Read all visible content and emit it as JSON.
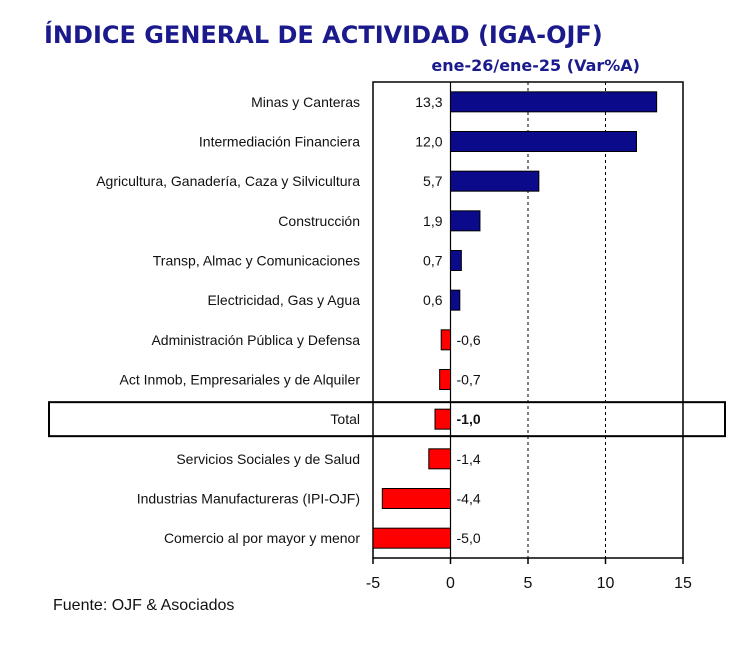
{
  "chart_data": {
    "type": "bar",
    "orientation": "horizontal",
    "title": "ÍNDICE GENERAL DE ACTIVIDAD (IGA-OJF)",
    "subtitle": "ene-26/ene-25  (Var%A)",
    "source": "Fuente: OJF & Asociados",
    "categories": [
      "Minas y Canteras",
      "Intermediación Financiera",
      "Agricultura, Ganadería, Caza y Silvicultura",
      "Construcción",
      "Transp, Almac y Comunicaciones",
      "Electricidad, Gas y Agua",
      "Administración Pública y Defensa",
      "Act Inmob, Empresariales y de Alquiler",
      "Total",
      "Servicios Sociales y de Salud",
      "Industrias Manufactureras (IPI-OJF)",
      "Comercio al por mayor y menor"
    ],
    "values": [
      13.3,
      12.0,
      5.7,
      1.9,
      0.7,
      0.6,
      -0.6,
      -0.7,
      -1.0,
      -1.4,
      -4.4,
      -5.0
    ],
    "value_labels": [
      "13,3",
      "12,0",
      "5,7",
      "1,9",
      "0,7",
      "0,6",
      "-0,6",
      "-0,7",
      "-1,0",
      "-1,4",
      "-4,4",
      "-5,0"
    ],
    "highlight_category": "Total",
    "xlim": [
      -5,
      15
    ],
    "xticks": [
      -5,
      0,
      5,
      10,
      15
    ],
    "xtick_labels": [
      "-5",
      "0",
      "5",
      "10",
      "15"
    ],
    "grid": "dashed vertical at 5 and 10",
    "colors": {
      "positive": "#0a0a8a",
      "negative": "#ff0000",
      "title": "#1a1a8c"
    }
  }
}
